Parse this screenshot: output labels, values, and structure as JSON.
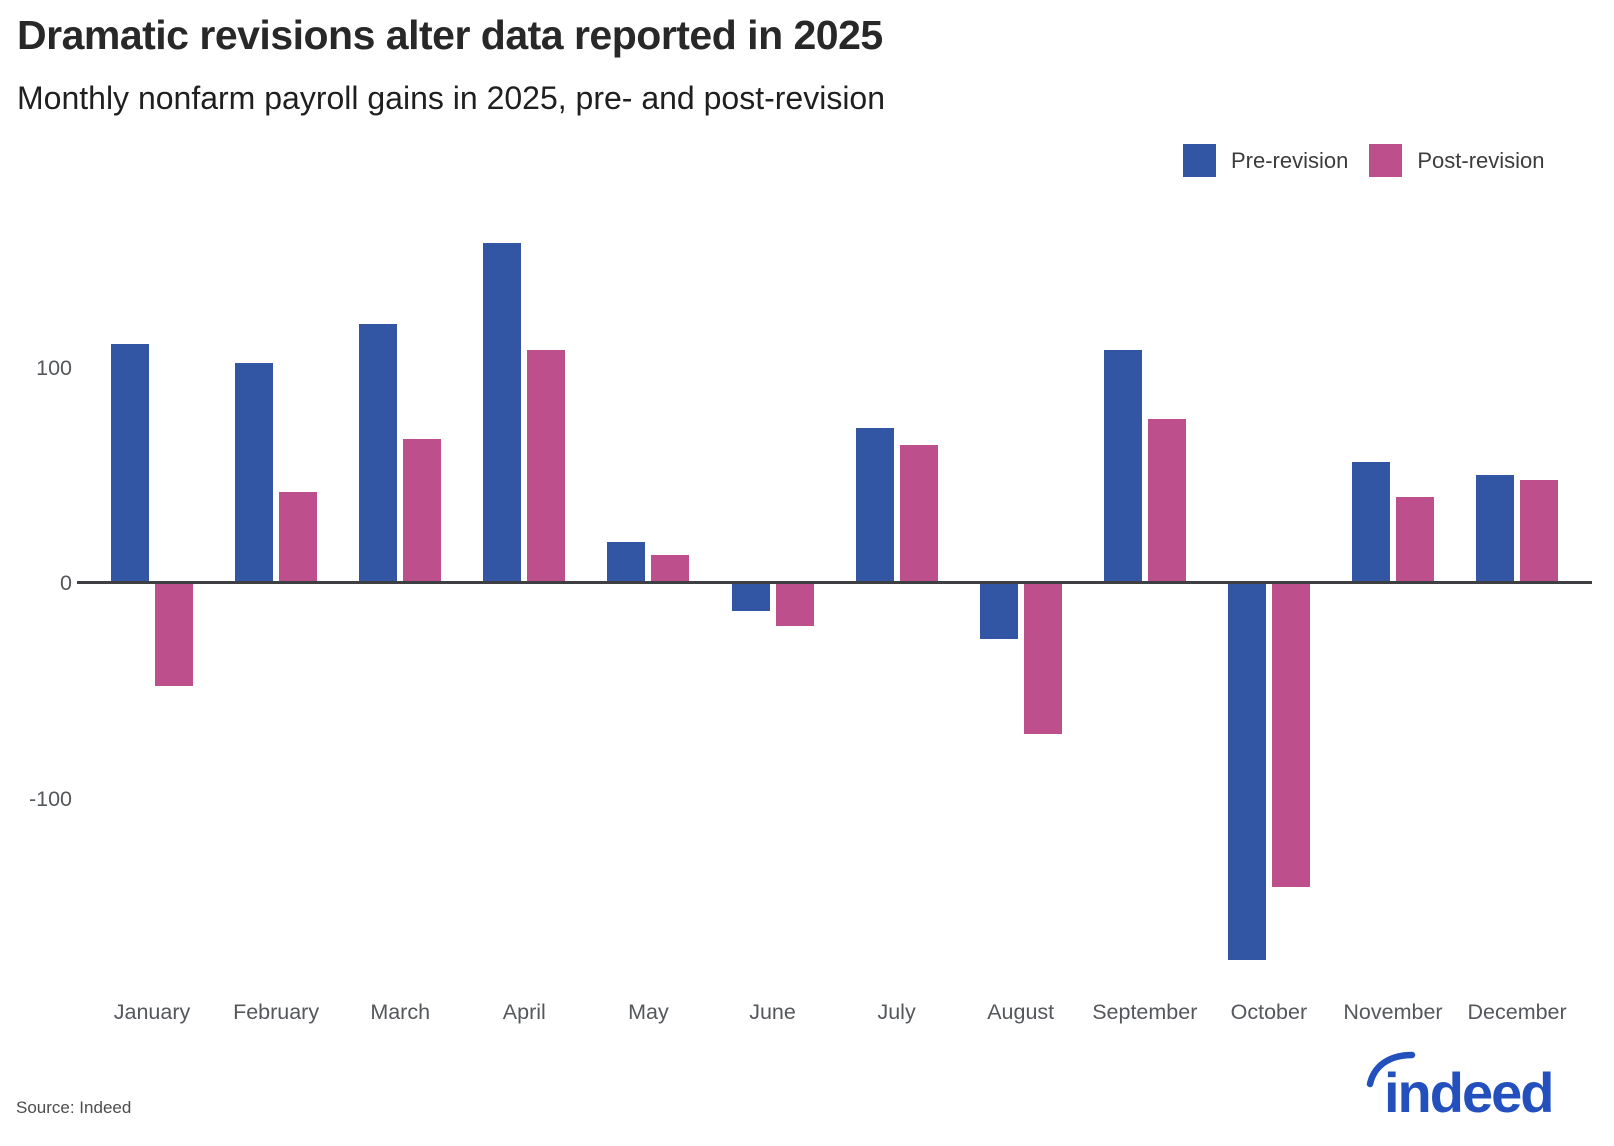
{
  "header": {
    "title": "Dramatic revisions alter data reported in 2025",
    "subtitle": "Monthly nonfarm payroll gains in 2025, pre- and post-revision"
  },
  "legend": {
    "items": [
      {
        "label": "Pre-revision",
        "color": "#3356a4"
      },
      {
        "label": "Post-revision",
        "color": "#bd4f8d"
      }
    ]
  },
  "chart_data": {
    "type": "bar",
    "title": "Dramatic revisions alter data reported in 2025",
    "subtitle": "Monthly nonfarm payroll gains in 2025, pre- and post-revision",
    "categories": [
      "January",
      "February",
      "March",
      "April",
      "May",
      "June",
      "July",
      "August",
      "September",
      "October",
      "November",
      "December"
    ],
    "series": [
      {
        "name": "Pre-revision",
        "color": "#3356a4",
        "values": [
          111,
          102,
          120,
          158,
          19,
          -13,
          72,
          -26,
          108,
          -175,
          56,
          50
        ]
      },
      {
        "name": "Post-revision",
        "color": "#bd4f8d",
        "values": [
          -48,
          42,
          67,
          108,
          13,
          -20,
          64,
          -70,
          76,
          -141,
          40,
          48
        ]
      }
    ],
    "xlabel": "",
    "ylabel": "",
    "yticks": [
      100,
      0,
      -100
    ],
    "ylim": [
      -185,
      170
    ],
    "grid": false,
    "legend_position": "top-right",
    "axis_color": "#3d3f42",
    "label_color": "#54575c"
  },
  "footer": {
    "source": "Source: Indeed",
    "brand": "indeed",
    "brand_color": "#2450bd"
  }
}
